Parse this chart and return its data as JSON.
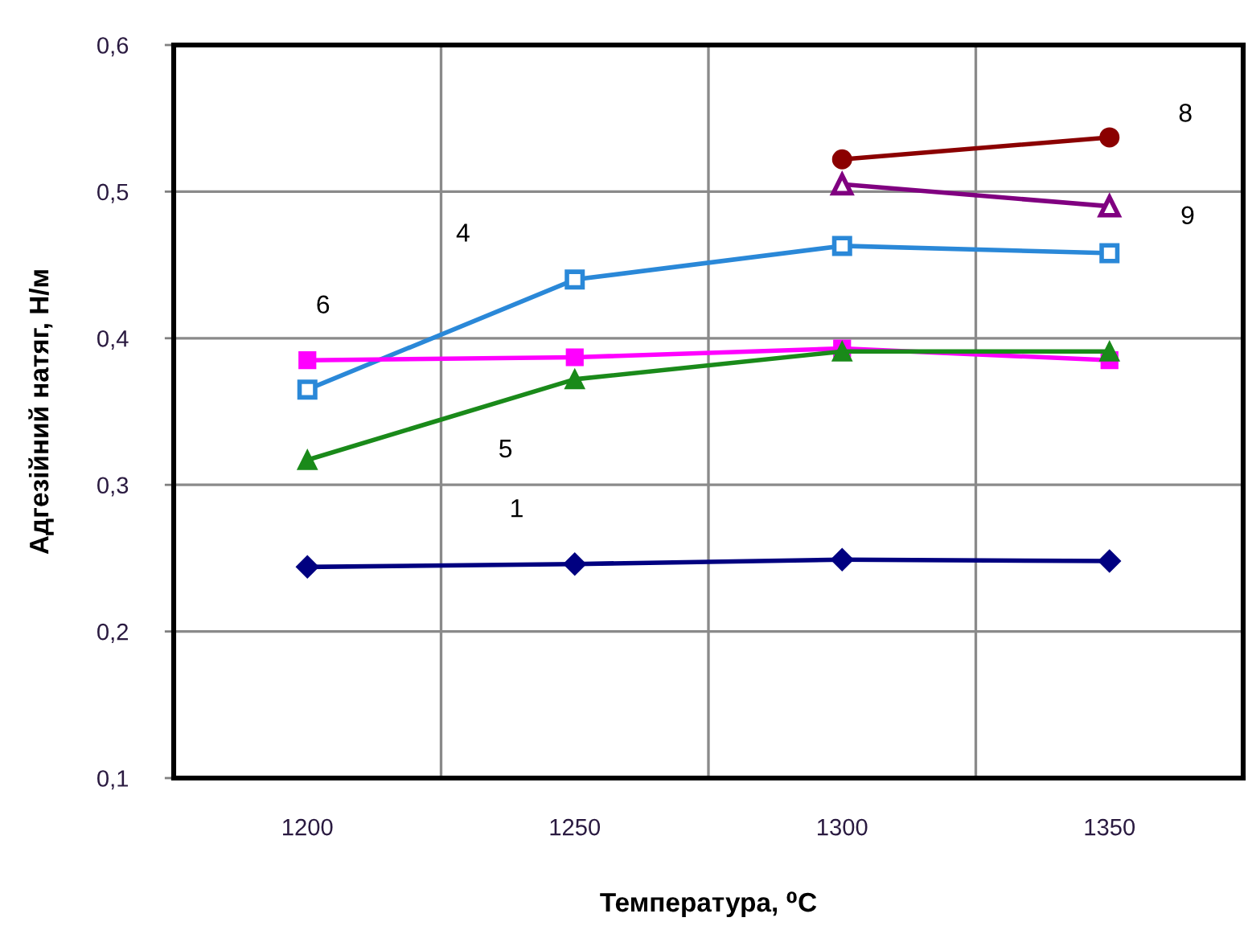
{
  "chart_data": {
    "type": "line",
    "xlabel": "Температура, ⁰C",
    "ylabel": "Адгезійний натяг, Н/м",
    "categories": [
      "1200",
      "1250",
      "1300",
      "1350"
    ],
    "series": [
      {
        "name": "1",
        "color": "#000080",
        "marker": "diamond",
        "values": [
          0.244,
          0.246,
          0.249,
          0.248
        ]
      },
      {
        "name": "4",
        "color": "#2a88d8",
        "marker": "square",
        "values": [
          0.365,
          0.44,
          0.463,
          0.458
        ]
      },
      {
        "name": "6",
        "color": "#ff00ff",
        "marker": "square",
        "values": [
          0.385,
          0.387,
          0.393,
          0.385
        ]
      },
      {
        "name": "5",
        "color": "#1a8a1a",
        "marker": "triangle",
        "values": [
          0.317,
          0.372,
          0.391,
          0.391
        ]
      },
      {
        "name": "8",
        "color": "#8b0000",
        "marker": "circle",
        "values": [
          null,
          null,
          0.522,
          0.537
        ]
      },
      {
        "name": "9",
        "color": "#800080",
        "marker": "triangle",
        "values": [
          null,
          null,
          0.505,
          0.49
        ]
      }
    ],
    "ylim": [
      0.1,
      0.6
    ],
    "yticks": [
      {
        "value": 0.1,
        "label": "0,1"
      },
      {
        "value": 0.2,
        "label": "0,2"
      },
      {
        "value": 0.3,
        "label": "0,3"
      },
      {
        "value": 0.4,
        "label": "0,4"
      },
      {
        "value": 0.5,
        "label": "0,5"
      },
      {
        "value": 0.6,
        "label": "0,6"
      }
    ],
    "grid": true,
    "legend": false,
    "line_style": "solid"
  }
}
